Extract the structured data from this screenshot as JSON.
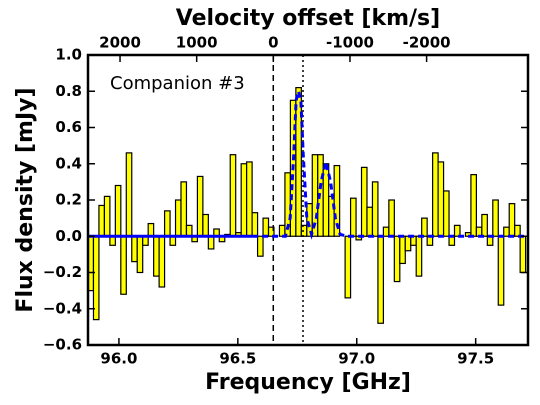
{
  "chart_data": {
    "type": "histogram",
    "title": "Velocity offset [km/s]",
    "xlabel": "Frequency [GHz]",
    "ylabel": "Flux density [mJy]",
    "annotation": "Companion #3",
    "xlim": [
      95.87,
      97.72
    ],
    "ylim": [
      -0.6,
      1.0
    ],
    "xticks": [
      {
        "value": 96.0,
        "label": "96.0"
      },
      96.5,
      {
        "value": 97.0,
        "label": "97.0"
      },
      97.5
    ],
    "yticks": [
      {
        "value": -0.6,
        "label": "−0.6"
      },
      {
        "value": -0.4,
        "label": "−0.4"
      },
      {
        "value": -0.2,
        "label": "−0.2"
      },
      {
        "value": 0.0,
        "label": "0.0"
      },
      0.2,
      0.4,
      0.6,
      0.8,
      {
        "value": 1.0,
        "label": "1.0"
      }
    ],
    "x2lim": [
      2418,
      -3323
    ],
    "x2ticks": [
      2000,
      1000,
      0,
      -1000,
      -2000
    ],
    "color": "#ffff00",
    "edgecolor": "#000000",
    "bins": [
      95.87,
      95.893,
      95.916,
      95.939,
      95.962,
      95.985,
      96.008,
      96.031,
      96.054,
      96.077,
      96.1,
      96.123,
      96.146,
      96.169,
      96.192,
      96.215,
      96.238,
      96.261,
      96.284,
      96.307,
      96.33,
      96.353,
      96.376,
      96.399,
      96.422,
      96.445,
      96.468,
      96.491,
      96.514,
      96.537,
      96.56,
      96.583,
      96.606,
      96.629,
      96.652,
      96.675,
      96.698,
      96.721,
      96.744,
      96.767,
      96.79,
      96.813,
      96.836,
      96.859,
      96.882,
      96.905,
      96.928,
      96.951,
      96.974,
      96.997,
      97.02,
      97.043,
      97.066,
      97.089,
      97.112,
      97.135,
      97.158,
      97.181,
      97.204,
      97.227,
      97.25,
      97.273,
      97.296,
      97.319,
      97.342,
      97.365,
      97.388,
      97.411,
      97.434,
      97.457,
      97.48,
      97.503,
      97.526,
      97.549,
      97.572,
      97.595,
      97.618,
      97.641,
      97.664,
      97.687,
      97.71
    ],
    "values": [
      -0.3,
      -0.46,
      0.17,
      0.22,
      -0.05,
      0.28,
      -0.32,
      0.46,
      -0.14,
      -0.2,
      -0.05,
      0.07,
      -0.22,
      -0.28,
      0.14,
      -0.05,
      0.2,
      0.3,
      0.06,
      -0.03,
      0.33,
      0.12,
      -0.07,
      0.04,
      -0.03,
      0.01,
      0.45,
      0.02,
      0.4,
      0.41,
      0.13,
      -0.11,
      0.1,
      0.05,
      0.0,
      0.06,
      0.35,
      0.75,
      0.82,
      0.06,
      0.18,
      0.45,
      0.45,
      0.4,
      0.22,
      0.39,
      0.0,
      -0.34,
      0.21,
      -0.02,
      0.38,
      0.16,
      0.3,
      -0.48,
      0.05,
      0.2,
      -0.25,
      -0.15,
      -0.08,
      -0.05,
      -0.22,
      0.1,
      -0.05,
      0.46,
      0.41,
      0.25,
      -0.05,
      0.06,
      0.0,
      0.02,
      0.34,
      0.05,
      0.12,
      -0.05,
      0.2,
      -0.38,
      0.05,
      0.18,
      0.06,
      -0.2
    ],
    "series": [
      {
        "color": "#0000ff",
        "linestyle": "solid",
        "x": [
          95.87,
          96.56
        ],
        "values": [
          0,
          0
        ]
      },
      {
        "color": "#0000ff",
        "linestyle": "dashed",
        "x": [
          96.56,
          96.7,
          96.72,
          96.735,
          96.745,
          96.755,
          96.765,
          96.775,
          96.79,
          96.81,
          96.83,
          96.85,
          96.87,
          96.89,
          96.91,
          96.93,
          96.96,
          97.72
        ],
        "values": [
          0,
          0,
          0.1,
          0.45,
          0.75,
          0.8,
          0.75,
          0.45,
          0.1,
          0.01,
          0.1,
          0.3,
          0.41,
          0.3,
          0.1,
          0.01,
          0,
          0
        ]
      }
    ],
    "vlines": [
      {
        "value": 96.649,
        "linestyle": "dashed"
      },
      {
        "value": 96.774,
        "linestyle": "dotted"
      }
    ]
  }
}
